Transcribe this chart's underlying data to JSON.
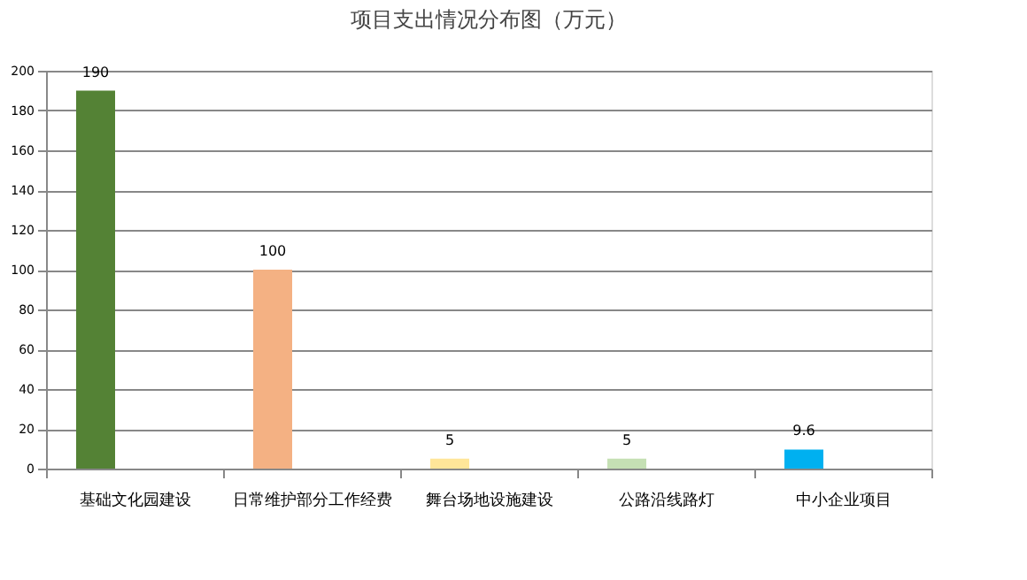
{
  "chart_data": {
    "type": "bar",
    "title": "项目支出情况分布图（万元）",
    "categories": [
      "基础文化园建设",
      "日常维护部分工作经费",
      "舞台场地设施建设",
      "公路沿线路灯",
      "中小企业项目"
    ],
    "values": [
      190,
      100,
      5,
      5,
      9.6
    ],
    "colors": [
      "#548235",
      "#f4b183",
      "#ffe699",
      "#c5e0b4",
      "#00b0f0"
    ],
    "ylim": [
      0,
      200
    ],
    "yticks": [
      0,
      20,
      40,
      60,
      80,
      100,
      120,
      140,
      160,
      180,
      200
    ],
    "grid": "y",
    "data_labels": true
  }
}
